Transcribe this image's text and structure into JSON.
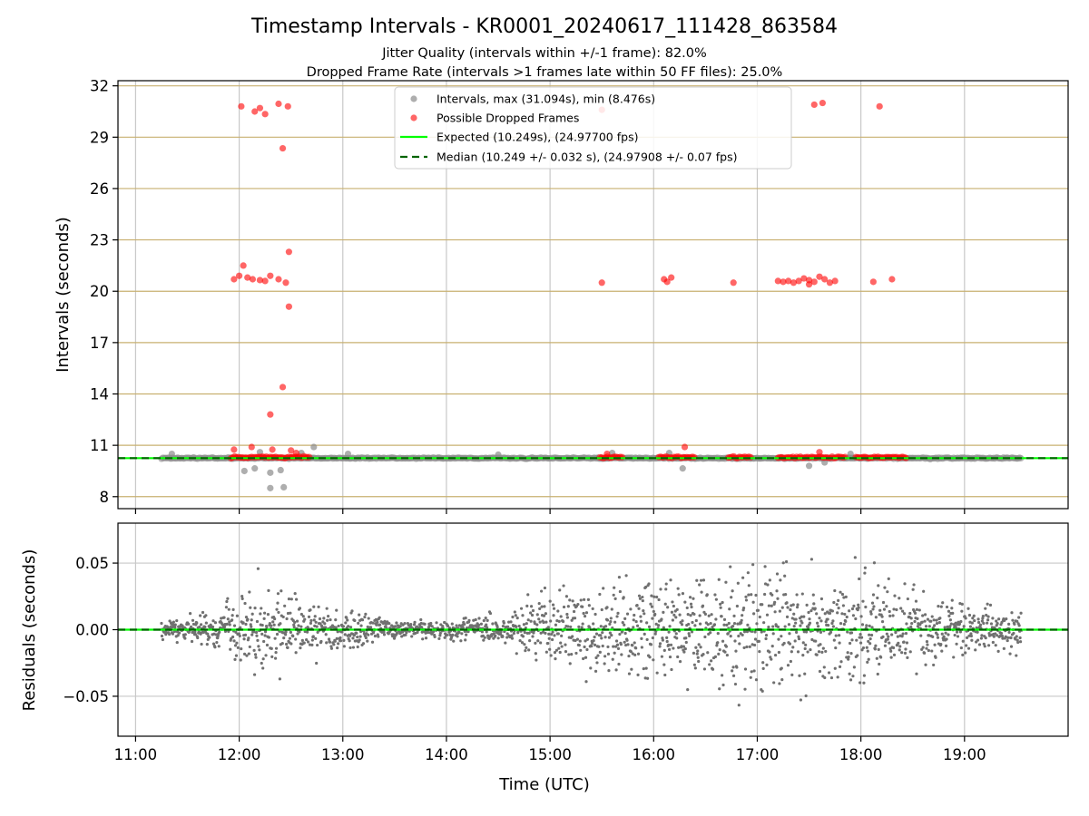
{
  "chart_data": {
    "type": "scatter",
    "title": "Timestamp Intervals - KR0001_20240617_111428_863584",
    "subtitles": [
      "Jitter Quality (intervals within +/-1 frame): 82.0%",
      "Dropped Frame Rate (intervals >1 frames late within 50 FF files): 25.0%"
    ],
    "xlabel": "Time (UTC)",
    "xticks": [
      "11:00",
      "12:00",
      "13:00",
      "14:00",
      "15:00",
      "16:00",
      "17:00",
      "18:00",
      "19:00"
    ],
    "xlim_hours": [
      10.83,
      20.0
    ],
    "grid": true,
    "top_panel": {
      "ylabel": "Intervals (seconds)",
      "ylim": [
        7.3,
        32.3
      ],
      "yticks": [
        8,
        11,
        14,
        17,
        20,
        23,
        26,
        29,
        32
      ],
      "legend_position": "top-center",
      "legend": [
        "Intervals, max (31.094s), min (8.476s)",
        "Possible Dropped Frames",
        "Expected (10.249s), (24.97700 fps)",
        "Median (10.249 +/- 0.032 s), (24.97908 +/- 0.07 fps)"
      ],
      "expected_interval": 10.249,
      "median_interval": 10.249,
      "baseline_segments_hours": [
        [
          11.25,
          11.8
        ],
        [
          11.8,
          13.0
        ],
        [
          13.0,
          15.5
        ],
        [
          15.5,
          16.7
        ],
        [
          16.7,
          17.2
        ],
        [
          17.2,
          18.5
        ],
        [
          18.5,
          19.55
        ]
      ],
      "gray_outliers": [
        [
          12.3,
          8.5
        ],
        [
          12.43,
          8.55
        ],
        [
          12.05,
          9.5
        ],
        [
          12.3,
          9.4
        ],
        [
          12.15,
          9.65
        ],
        [
          12.4,
          9.55
        ],
        [
          12.72,
          10.9
        ],
        [
          12.6,
          10.55
        ],
        [
          12.2,
          10.6
        ],
        [
          16.28,
          9.65
        ],
        [
          16.15,
          10.55
        ],
        [
          15.6,
          10.55
        ],
        [
          17.5,
          9.8
        ],
        [
          17.65,
          10.0
        ],
        [
          13.05,
          10.5
        ],
        [
          14.5,
          10.45
        ],
        [
          17.9,
          10.5
        ],
        [
          11.35,
          10.5
        ]
      ],
      "red_points": [
        [
          12.02,
          30.8
        ],
        [
          12.15,
          30.5
        ],
        [
          12.2,
          30.7
        ],
        [
          12.25,
          30.35
        ],
        [
          12.38,
          30.95
        ],
        [
          12.47,
          30.8
        ],
        [
          12.42,
          28.35
        ],
        [
          17.55,
          30.9
        ],
        [
          17.63,
          31.0
        ],
        [
          18.18,
          30.8
        ],
        [
          15.5,
          30.6
        ],
        [
          12.04,
          21.5
        ],
        [
          12.0,
          20.9
        ],
        [
          11.95,
          20.7
        ],
        [
          12.08,
          20.8
        ],
        [
          12.13,
          20.7
        ],
        [
          12.2,
          20.65
        ],
        [
          12.25,
          20.6
        ],
        [
          12.3,
          20.9
        ],
        [
          12.38,
          20.7
        ],
        [
          12.45,
          20.5
        ],
        [
          12.48,
          22.3
        ],
        [
          12.48,
          19.1
        ],
        [
          12.42,
          14.4
        ],
        [
          12.3,
          12.8
        ],
        [
          15.5,
          20.5
        ],
        [
          16.1,
          20.7
        ],
        [
          16.13,
          20.55
        ],
        [
          16.17,
          20.8
        ],
        [
          16.77,
          20.5
        ],
        [
          17.2,
          20.6
        ],
        [
          17.25,
          20.55
        ],
        [
          17.3,
          20.6
        ],
        [
          17.35,
          20.5
        ],
        [
          17.4,
          20.6
        ],
        [
          17.45,
          20.75
        ],
        [
          17.5,
          20.65
        ],
        [
          17.55,
          20.55
        ],
        [
          17.6,
          20.85
        ],
        [
          17.65,
          20.7
        ],
        [
          17.7,
          20.5
        ],
        [
          17.75,
          20.6
        ],
        [
          17.5,
          20.4
        ],
        [
          18.12,
          20.55
        ],
        [
          18.3,
          20.7
        ],
        [
          11.95,
          10.75
        ],
        [
          12.12,
          10.9
        ],
        [
          12.32,
          10.75
        ],
        [
          12.5,
          10.7
        ],
        [
          12.55,
          10.55
        ],
        [
          16.3,
          10.9
        ],
        [
          15.55,
          10.5
        ],
        [
          17.6,
          10.6
        ]
      ],
      "red_bands_hours": [
        [
          11.92,
          12.68
        ],
        [
          15.48,
          15.7
        ],
        [
          16.05,
          16.4
        ],
        [
          16.72,
          16.95
        ],
        [
          17.2,
          17.85
        ],
        [
          17.95,
          18.45
        ]
      ]
    },
    "bottom_panel": {
      "ylabel": "Residuals (seconds)",
      "ylim": [
        -0.08,
        0.08
      ],
      "yticks": [
        0.05,
        0.0,
        -0.05
      ],
      "ytick_labels": [
        "0.05",
        "0.00",
        "−0.05"
      ],
      "expected_residual": 0.0,
      "residual_spread_by_hour": [
        [
          11.25,
          0.008
        ],
        [
          11.8,
          0.012
        ],
        [
          12.0,
          0.03
        ],
        [
          12.5,
          0.025
        ],
        [
          13.0,
          0.015
        ],
        [
          13.5,
          0.006
        ],
        [
          14.0,
          0.006
        ],
        [
          14.5,
          0.01
        ],
        [
          15.0,
          0.025
        ],
        [
          15.5,
          0.03
        ],
        [
          16.0,
          0.04
        ],
        [
          17.0,
          0.045
        ],
        [
          18.0,
          0.04
        ],
        [
          18.5,
          0.03
        ],
        [
          19.0,
          0.02
        ],
        [
          19.55,
          0.015
        ]
      ]
    },
    "colors": {
      "interval_points": "#8c8c8c",
      "baseline": "#6b6b6b",
      "dropped_frames": "#ff0000",
      "expected_line": "#00ff00",
      "median_line": "#006400",
      "residual_points": "#707070",
      "grid_vertical": "#c8c8c8",
      "grid_horizontal_top": "#c8b070"
    }
  }
}
